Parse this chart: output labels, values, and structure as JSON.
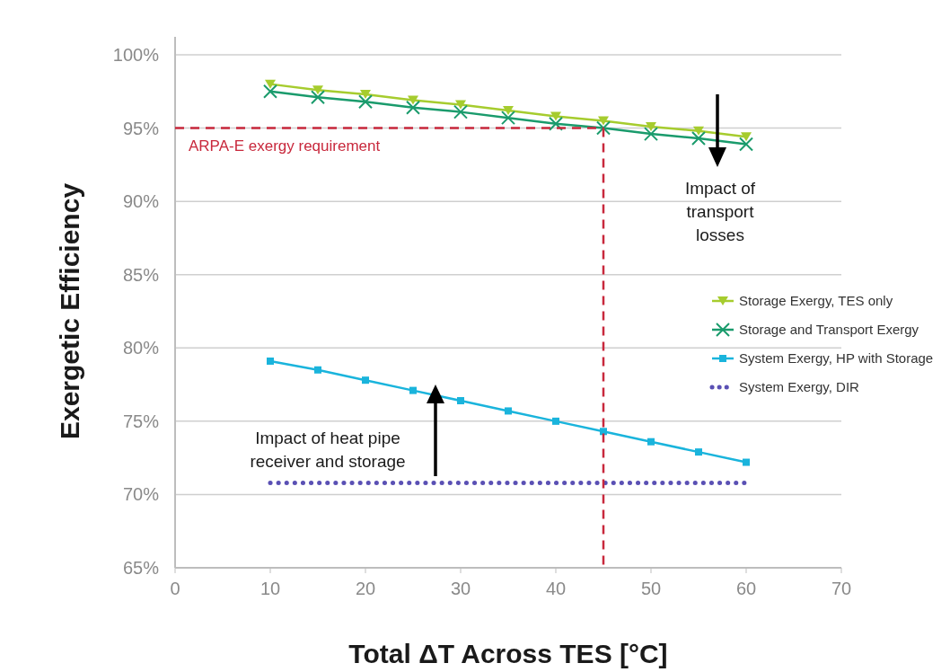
{
  "chart_data": {
    "type": "line",
    "xlabel": "Total ΔT Across TES [°C]",
    "ylabel": "Exergetic Efficiency",
    "x": [
      10,
      15,
      20,
      25,
      30,
      35,
      40,
      45,
      50,
      55,
      60
    ],
    "series": [
      {
        "name": "Storage Exergy, TES only",
        "color": "#a6cc2e",
        "marker": "triangle",
        "line_style": "solid",
        "values": [
          98.0,
          97.6,
          97.3,
          96.9,
          96.6,
          96.2,
          95.8,
          95.5,
          95.1,
          94.8,
          94.4
        ]
      },
      {
        "name": "Storage and Transport Exergy",
        "color": "#1a9b6c",
        "marker": "cross",
        "line_style": "solid",
        "values": [
          97.5,
          97.1,
          96.8,
          96.4,
          96.1,
          95.7,
          95.3,
          95.0,
          94.6,
          94.3,
          93.9
        ]
      },
      {
        "name": "System Exergy, HP with Storage",
        "color": "#1ab4dc",
        "marker": "square",
        "line_style": "solid",
        "values": [
          79.1,
          78.5,
          77.8,
          77.1,
          76.4,
          75.7,
          75.0,
          74.3,
          73.6,
          72.9,
          72.2
        ]
      },
      {
        "name": "System Exergy, DIR",
        "color": "#5a50b4",
        "marker": "none",
        "line_style": "dotted",
        "values": [
          70.8,
          70.8,
          70.8,
          70.8,
          70.8,
          70.8,
          70.8,
          70.8,
          70.8,
          70.8,
          70.8
        ]
      }
    ],
    "xlim": [
      0,
      70
    ],
    "xticks": [
      0,
      10,
      20,
      30,
      40,
      50,
      60,
      70
    ],
    "ylim": [
      65,
      100
    ],
    "yticks": [
      {
        "value": 65,
        "label": "65%"
      },
      {
        "value": 70,
        "label": "70%"
      },
      {
        "value": 75,
        "label": "75%"
      },
      {
        "value": 80,
        "label": "80%"
      },
      {
        "value": 85,
        "label": "85%"
      },
      {
        "value": 90,
        "label": "90%"
      },
      {
        "value": 95,
        "label": "95%"
      },
      {
        "value": 100,
        "label": "100%"
      }
    ],
    "ref_lines": [
      {
        "axis": "y",
        "value": 95,
        "label": "ARPA-E exergy requirement",
        "color": "#c8283c",
        "line_style": "dashed"
      },
      {
        "axis": "x",
        "value": 45,
        "label": null,
        "color": "#c8283c",
        "line_style": "dashed"
      }
    ],
    "annotations": [
      "Impact of transport losses",
      "Impact of heat pipe receiver and storage"
    ],
    "grid": "y",
    "legend": "right"
  }
}
